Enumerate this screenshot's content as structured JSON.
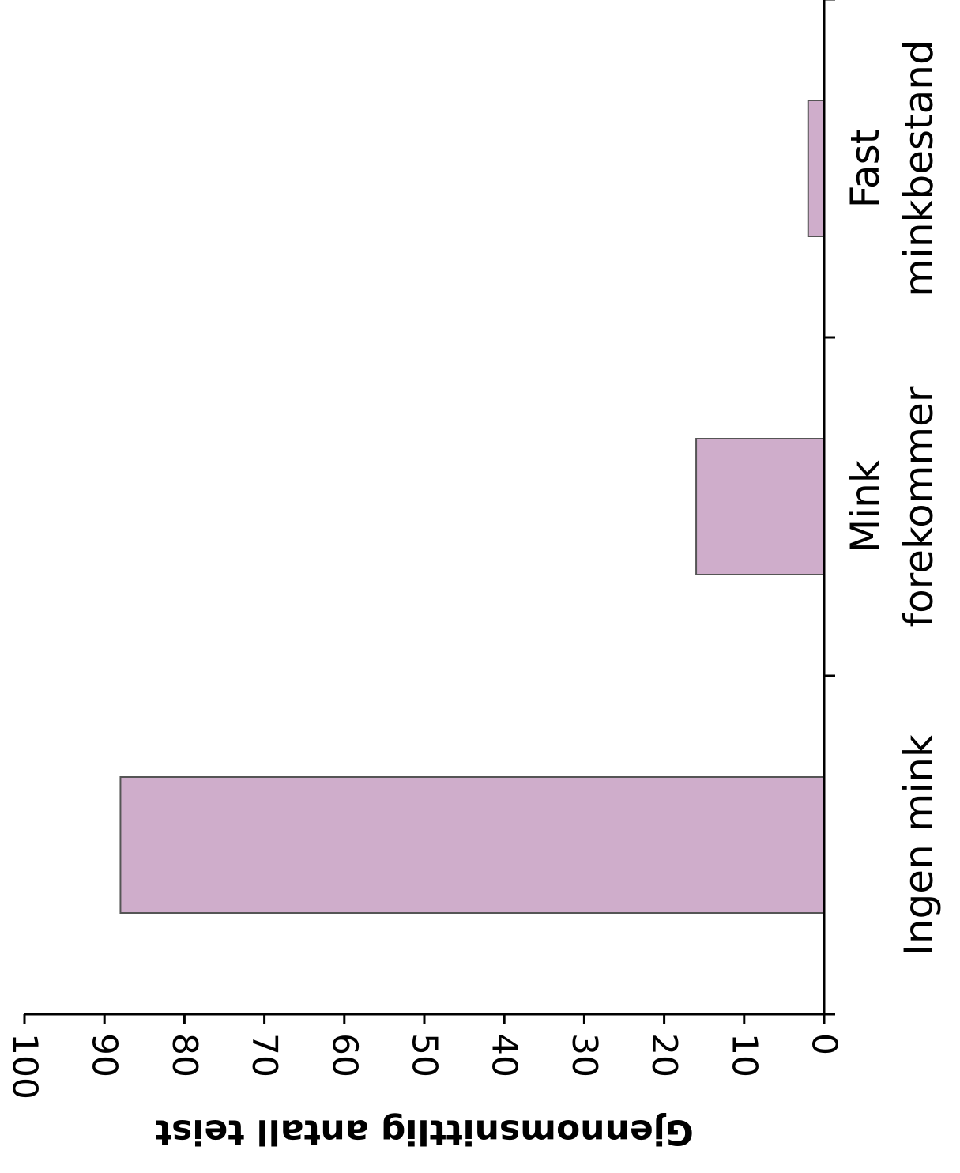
{
  "chart_data": {
    "type": "bar",
    "orientation": "horizontal",
    "categories": [
      "Ingen mink",
      "Mink forekommer",
      "Fast minkbestand"
    ],
    "category_lines": [
      [
        "Ingen mink"
      ],
      [
        "Mink",
        "forekommer"
      ],
      [
        "Fast",
        "minkbestand"
      ]
    ],
    "values": [
      88,
      16,
      2
    ],
    "ylabel": "Gjennomsnittlig antall teist",
    "ylim": [
      0,
      100
    ],
    "ticks": [
      0,
      10,
      20,
      30,
      40,
      50,
      60,
      70,
      80,
      90,
      100
    ],
    "tick_labels": [
      "0",
      "10",
      "20",
      "30",
      "40",
      "50",
      "60",
      "70",
      "80",
      "90",
      "100"
    ],
    "grid": false,
    "bar_color": "#cfadcb",
    "bar_edge_color": "#555555"
  }
}
